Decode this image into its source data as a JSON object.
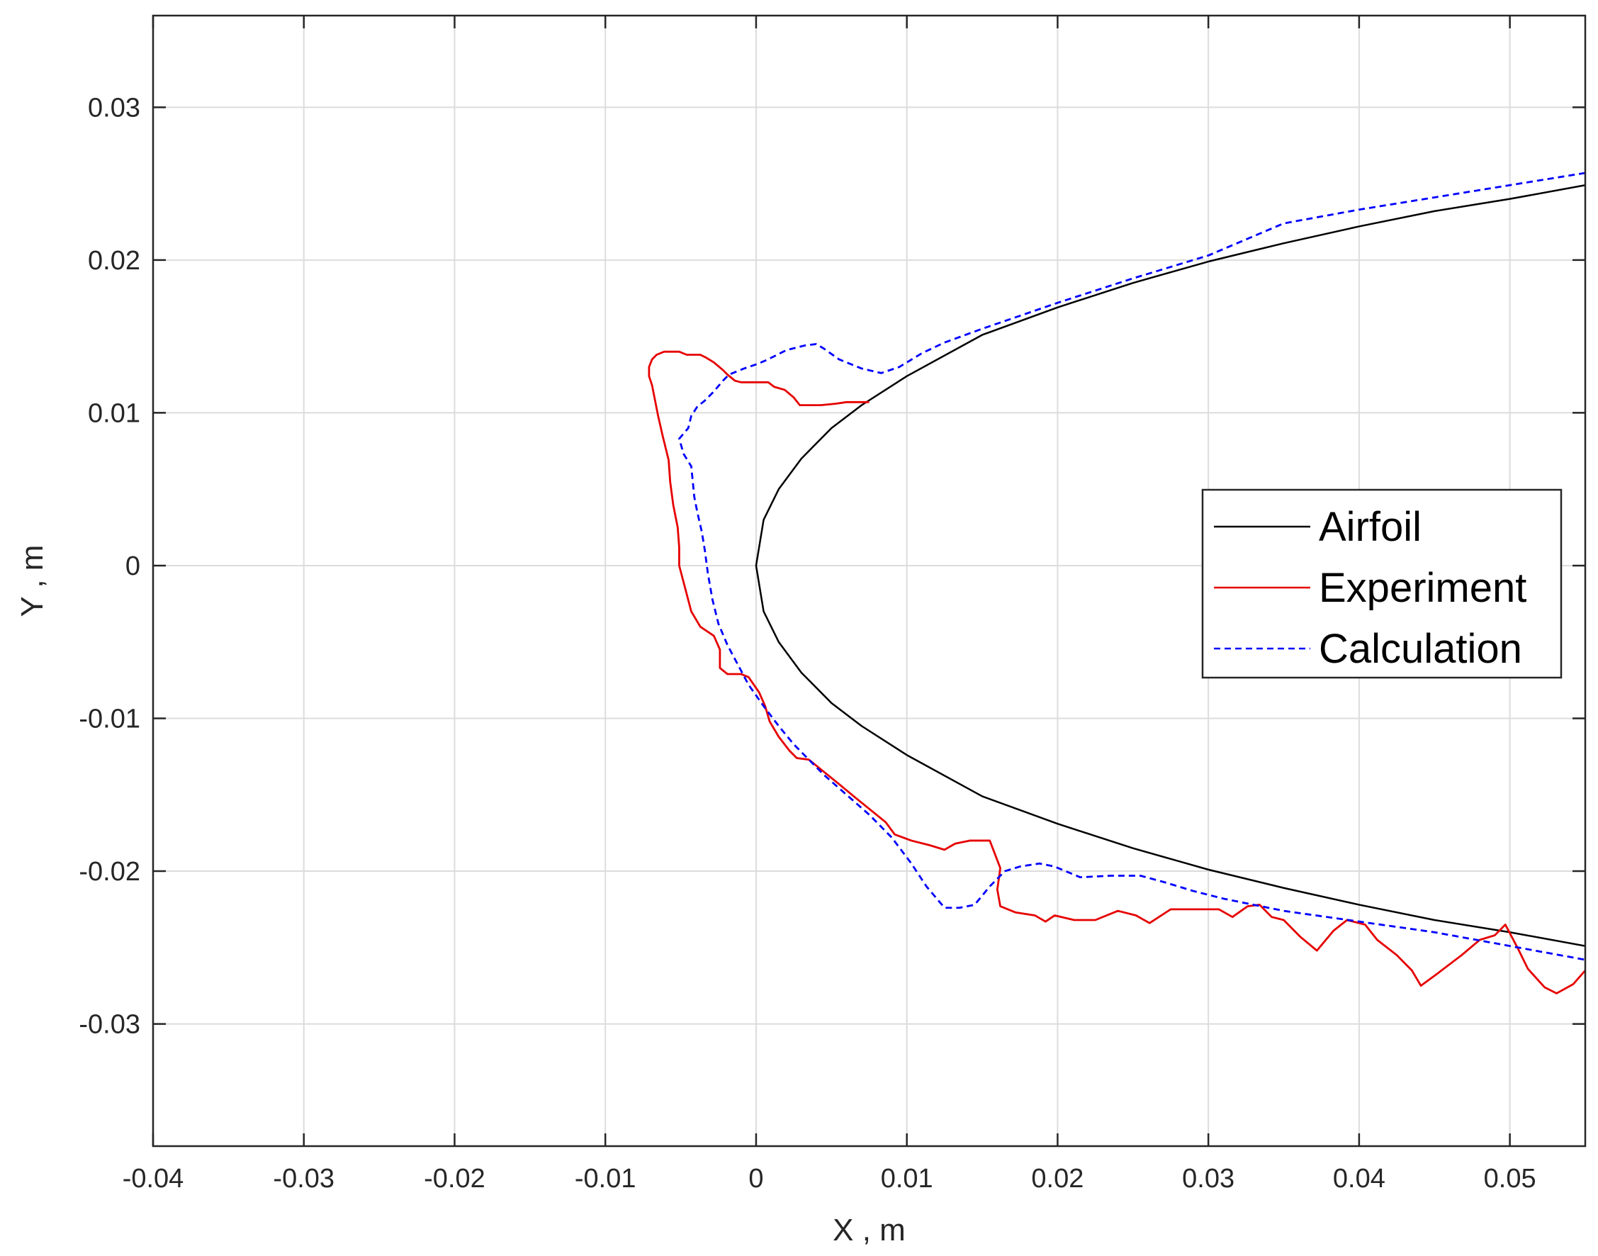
{
  "chart_data": {
    "type": "line",
    "title": "",
    "xlabel": "X , m",
    "ylabel": "Y , m",
    "xlim": [
      -0.04,
      0.055
    ],
    "ylim": [
      -0.038,
      0.036
    ],
    "grid": true,
    "legend_position": "right",
    "x_ticks": [
      -0.04,
      -0.03,
      -0.02,
      -0.01,
      0,
      0.01,
      0.02,
      0.03,
      0.04,
      0.05
    ],
    "x_tick_labels": [
      "-0.04",
      "-0.03",
      "-0.02",
      "-0.01",
      "0",
      "0.01",
      "0.02",
      "0.03",
      "0.04",
      "0.05"
    ],
    "y_ticks": [
      -0.03,
      -0.02,
      -0.01,
      0,
      0.01,
      0.02,
      0.03
    ],
    "y_tick_labels": [
      "-0.03",
      "-0.02",
      "-0.01",
      "0",
      "0.01",
      "0.02",
      "0.03"
    ],
    "series": [
      {
        "name": "Airfoil",
        "color": "#000000",
        "style": "solid",
        "points": [
          [
            0.055,
            0.0249
          ],
          [
            0.05,
            0.024
          ],
          [
            0.045,
            0.0232
          ],
          [
            0.04,
            0.0222
          ],
          [
            0.035,
            0.0211
          ],
          [
            0.03,
            0.0199
          ],
          [
            0.025,
            0.0185
          ],
          [
            0.02,
            0.0169
          ],
          [
            0.015,
            0.0151
          ],
          [
            0.01,
            0.0124
          ],
          [
            0.007,
            0.0105
          ],
          [
            0.005,
            0.009
          ],
          [
            0.003,
            0.007
          ],
          [
            0.0015,
            0.005
          ],
          [
            0.0005,
            0.003
          ],
          [
            0.0,
            0.0
          ],
          [
            0.0005,
            -0.003
          ],
          [
            0.0015,
            -0.005
          ],
          [
            0.003,
            -0.007
          ],
          [
            0.005,
            -0.009
          ],
          [
            0.007,
            -0.0105
          ],
          [
            0.01,
            -0.0124
          ],
          [
            0.015,
            -0.0151
          ],
          [
            0.02,
            -0.0169
          ],
          [
            0.025,
            -0.0185
          ],
          [
            0.03,
            -0.0199
          ],
          [
            0.035,
            -0.0211
          ],
          [
            0.04,
            -0.0222
          ],
          [
            0.045,
            -0.0232
          ],
          [
            0.05,
            -0.024
          ],
          [
            0.055,
            -0.0249
          ]
        ]
      },
      {
        "name": "Experiment",
        "color": "#e60000",
        "style": "solid",
        "points": [
          [
            0.0075,
            0.0107
          ],
          [
            0.006,
            0.0107
          ],
          [
            0.0053,
            0.0106
          ],
          [
            0.0043,
            0.0105
          ],
          [
            0.0035,
            0.0105
          ],
          [
            0.0029,
            0.0105
          ],
          [
            0.0025,
            0.011
          ],
          [
            0.0019,
            0.0115
          ],
          [
            0.0012,
            0.0117
          ],
          [
            0.0008,
            0.012
          ],
          [
            -0.0002,
            0.012
          ],
          [
            -0.001,
            0.012
          ],
          [
            -0.0014,
            0.0121
          ],
          [
            -0.0019,
            0.0125
          ],
          [
            -0.0022,
            0.0128
          ],
          [
            -0.0028,
            0.0133
          ],
          [
            -0.0033,
            0.0136
          ],
          [
            -0.0037,
            0.0138
          ],
          [
            -0.0046,
            0.0138
          ],
          [
            -0.0051,
            0.014
          ],
          [
            -0.0061,
            0.014
          ],
          [
            -0.0066,
            0.0138
          ],
          [
            -0.0069,
            0.0135
          ],
          [
            -0.0071,
            0.013
          ],
          [
            -0.0071,
            0.0124
          ],
          [
            -0.0069,
            0.0118
          ],
          [
            -0.0067,
            0.0108
          ],
          [
            -0.0065,
            0.0098
          ],
          [
            -0.0062,
            0.0085
          ],
          [
            -0.0058,
            0.0069
          ],
          [
            -0.0057,
            0.0055
          ],
          [
            -0.0055,
            0.004
          ],
          [
            -0.0052,
            0.0025
          ],
          [
            -0.0051,
            0.0012
          ],
          [
            -0.0051,
            0.0
          ],
          [
            -0.0047,
            -0.0015
          ],
          [
            -0.0043,
            -0.003
          ],
          [
            -0.0037,
            -0.004
          ],
          [
            -0.0028,
            -0.0046
          ],
          [
            -0.0024,
            -0.0055
          ],
          [
            -0.0024,
            -0.0067
          ],
          [
            -0.0019,
            -0.0071
          ],
          [
            -0.001,
            -0.0071
          ],
          [
            -0.0005,
            -0.0073
          ],
          [
            0.0002,
            -0.0083
          ],
          [
            0.0006,
            -0.0092
          ],
          [
            0.0009,
            -0.0102
          ],
          [
            0.0015,
            -0.0112
          ],
          [
            0.0022,
            -0.0121
          ],
          [
            0.0027,
            -0.0126
          ],
          [
            0.0035,
            -0.0127
          ],
          [
            0.0045,
            -0.0135
          ],
          [
            0.0055,
            -0.0143
          ],
          [
            0.0066,
            -0.0152
          ],
          [
            0.0076,
            -0.016
          ],
          [
            0.0086,
            -0.0168
          ],
          [
            0.0092,
            -0.0176
          ],
          [
            0.0103,
            -0.018
          ],
          [
            0.0115,
            -0.0183
          ],
          [
            0.0125,
            -0.0186
          ],
          [
            0.0132,
            -0.0182
          ],
          [
            0.0142,
            -0.018
          ],
          [
            0.0155,
            -0.018
          ],
          [
            0.0162,
            -0.0198
          ],
          [
            0.016,
            -0.0212
          ],
          [
            0.0162,
            -0.0223
          ],
          [
            0.0172,
            -0.0227
          ],
          [
            0.0185,
            -0.0229
          ],
          [
            0.0192,
            -0.0233
          ],
          [
            0.0198,
            -0.0229
          ],
          [
            0.0211,
            -0.0232
          ],
          [
            0.0225,
            -0.0232
          ],
          [
            0.024,
            -0.0226
          ],
          [
            0.0252,
            -0.0229
          ],
          [
            0.0261,
            -0.0234
          ],
          [
            0.0275,
            -0.0225
          ],
          [
            0.0289,
            -0.0225
          ],
          [
            0.0307,
            -0.0225
          ],
          [
            0.0316,
            -0.023
          ],
          [
            0.0326,
            -0.0223
          ],
          [
            0.0334,
            -0.0222
          ],
          [
            0.0342,
            -0.023
          ],
          [
            0.035,
            -0.0232
          ],
          [
            0.0361,
            -0.0243
          ],
          [
            0.0372,
            -0.0252
          ],
          [
            0.0383,
            -0.0239
          ],
          [
            0.0392,
            -0.0232
          ],
          [
            0.0404,
            -0.0235
          ],
          [
            0.0412,
            -0.0245
          ],
          [
            0.0425,
            -0.0255
          ],
          [
            0.0435,
            -0.0265
          ],
          [
            0.0441,
            -0.0275
          ],
          [
            0.0452,
            -0.0267
          ],
          [
            0.0468,
            -0.0255
          ],
          [
            0.048,
            -0.0245
          ],
          [
            0.049,
            -0.0242
          ],
          [
            0.0497,
            -0.0235
          ],
          [
            0.0505,
            -0.025
          ],
          [
            0.0512,
            -0.0264
          ],
          [
            0.0523,
            -0.0276
          ],
          [
            0.0531,
            -0.028
          ],
          [
            0.0542,
            -0.0274
          ],
          [
            0.055,
            -0.0265
          ]
        ]
      },
      {
        "name": "Calculation",
        "color": "#0000ff",
        "style": "dashed",
        "points": [
          [
            0.055,
            0.0257
          ],
          [
            0.05,
            0.0249
          ],
          [
            0.045,
            0.0241
          ],
          [
            0.04,
            0.0233
          ],
          [
            0.035,
            0.0224
          ],
          [
            0.03,
            0.0203
          ],
          [
            0.025,
            0.0188
          ],
          [
            0.02,
            0.0172
          ],
          [
            0.015,
            0.0155
          ],
          [
            0.0125,
            0.0146
          ],
          [
            0.011,
            0.0139
          ],
          [
            0.0095,
            0.013
          ],
          [
            0.0083,
            0.0126
          ],
          [
            0.007,
            0.0129
          ],
          [
            0.0055,
            0.0135
          ],
          [
            0.0045,
            0.0142
          ],
          [
            0.004,
            0.0145
          ],
          [
            0.0032,
            0.0144
          ],
          [
            0.002,
            0.0141
          ],
          [
            0.0008,
            0.0135
          ],
          [
            0.0001,
            0.0132
          ],
          [
            -0.0008,
            0.0129
          ],
          [
            -0.0018,
            0.0125
          ],
          [
            -0.0022,
            0.0121
          ],
          [
            -0.0028,
            0.0114
          ],
          [
            -0.0034,
            0.0108
          ],
          [
            -0.0039,
            0.0104
          ],
          [
            -0.0043,
            0.0098
          ],
          [
            -0.0045,
            0.009
          ],
          [
            -0.0051,
            0.0083
          ],
          [
            -0.0048,
            0.0073
          ],
          [
            -0.0043,
            0.0065
          ],
          [
            -0.0042,
            0.0055
          ],
          [
            -0.0041,
            0.0045
          ],
          [
            -0.0039,
            0.0035
          ],
          [
            -0.0036,
            0.0022
          ],
          [
            -0.0034,
            0.001
          ],
          [
            -0.0032,
            -0.0005
          ],
          [
            -0.0029,
            -0.0022
          ],
          [
            -0.0025,
            -0.0038
          ],
          [
            -0.0019,
            -0.0052
          ],
          [
            -0.0012,
            -0.0065
          ],
          [
            -0.0005,
            -0.0078
          ],
          [
            0.0005,
            -0.0092
          ],
          [
            0.0015,
            -0.0105
          ],
          [
            0.0025,
            -0.0117
          ],
          [
            0.0035,
            -0.0127
          ],
          [
            0.0045,
            -0.0137
          ],
          [
            0.006,
            -0.015
          ],
          [
            0.0075,
            -0.0163
          ],
          [
            0.009,
            -0.0178
          ],
          [
            0.0103,
            -0.0195
          ],
          [
            0.0113,
            -0.021
          ],
          [
            0.0125,
            -0.0224
          ],
          [
            0.0135,
            -0.0224
          ],
          [
            0.0145,
            -0.0222
          ],
          [
            0.0155,
            -0.021
          ],
          [
            0.0165,
            -0.02
          ],
          [
            0.0175,
            -0.0197
          ],
          [
            0.0188,
            -0.0195
          ],
          [
            0.0198,
            -0.0197
          ],
          [
            0.0215,
            -0.0204
          ],
          [
            0.0235,
            -0.0203
          ],
          [
            0.0255,
            -0.0203
          ],
          [
            0.027,
            -0.0207
          ],
          [
            0.029,
            -0.0213
          ],
          [
            0.031,
            -0.0218
          ],
          [
            0.033,
            -0.0222
          ],
          [
            0.035,
            -0.0226
          ],
          [
            0.04,
            -0.0233
          ],
          [
            0.045,
            -0.024
          ],
          [
            0.05,
            -0.0249
          ],
          [
            0.055,
            -0.0258
          ]
        ]
      }
    ]
  }
}
